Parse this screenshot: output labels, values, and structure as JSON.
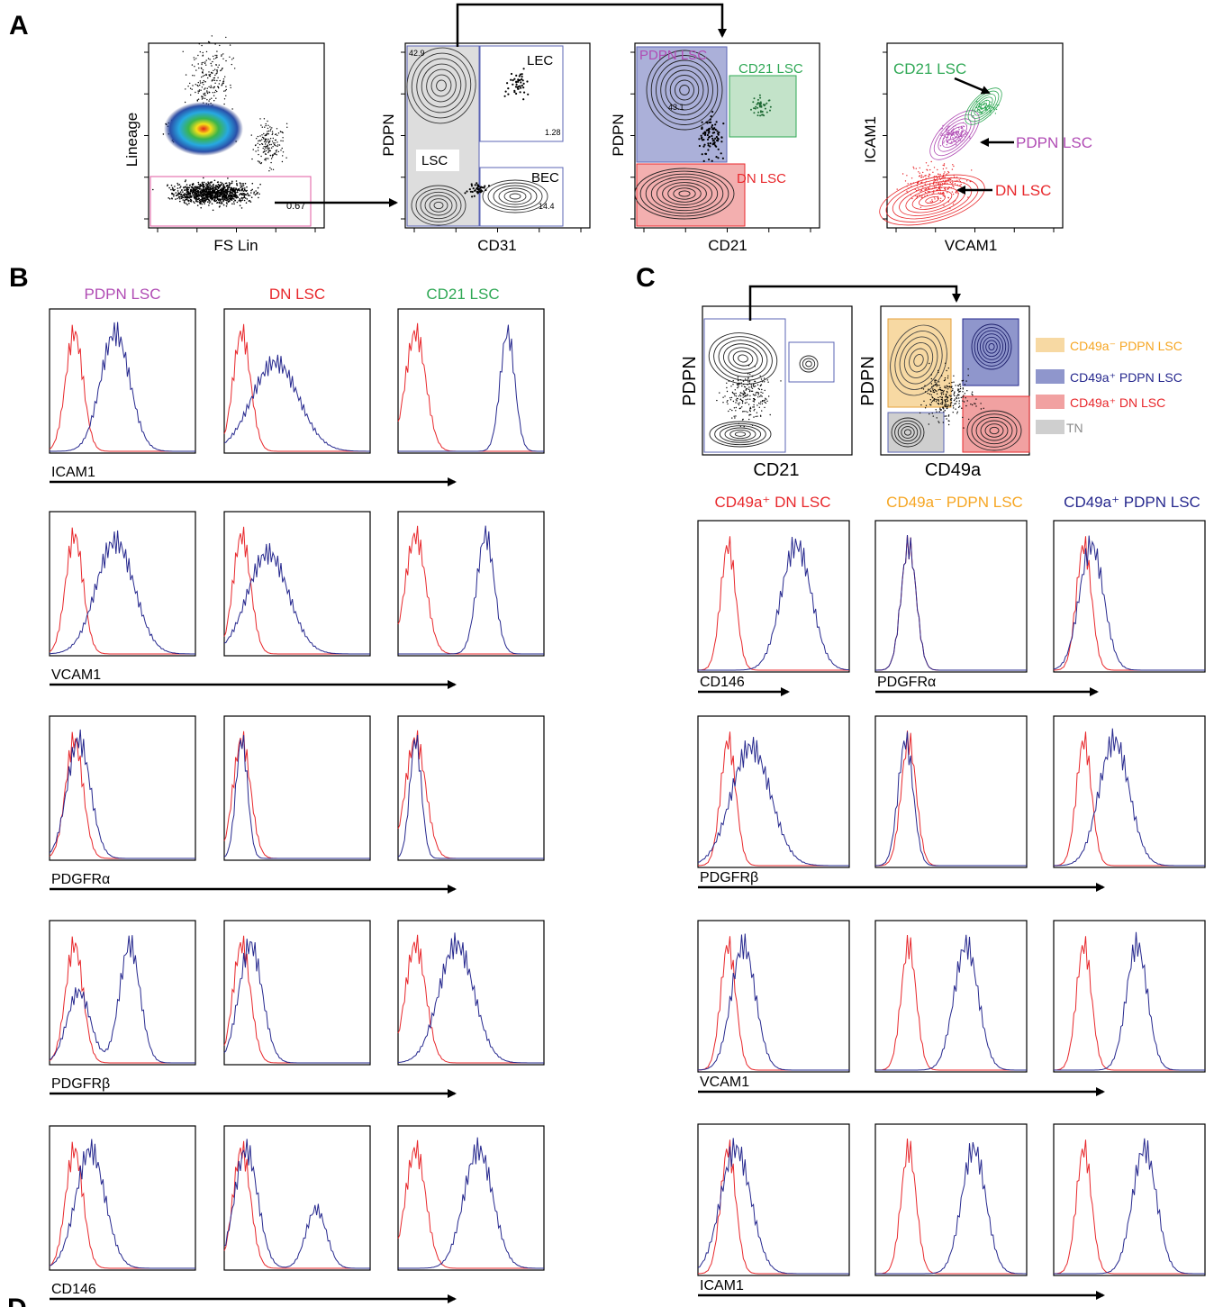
{
  "panel_letters": {
    "a": "A",
    "b": "B",
    "c": "C",
    "d_partial": "D"
  },
  "colors": {
    "red": "#e8282c",
    "blue": "#26288e",
    "green": "#2fa855",
    "purple": "#b04bb4",
    "orange": "#f6a623",
    "gray": "#8a8a8a",
    "gate_blue": "#8f96cc",
    "gate_red": "#f1a1a1",
    "gate_green": "#b4dcbc",
    "gate_orange": "#f7d9a3",
    "gate_gray": "#cfcfcf",
    "lin_gate": "#e05aa0"
  },
  "panel_a": {
    "plot1": {
      "ylabel": "Lineage",
      "xlabel": "FS Lin",
      "gate_pct": "0.67"
    },
    "plot2": {
      "ylabel": "PDPN",
      "xlabel": "CD31",
      "gates": [
        {
          "label": "LSC",
          "pct": "42.9"
        },
        {
          "label": "LEC",
          "pct": "1.28"
        },
        {
          "label": "BEC",
          "pct": "14.4"
        }
      ]
    },
    "plot3": {
      "ylabel": "PDPN",
      "xlabel": "CD21",
      "gates": [
        {
          "label": "PDPN LSC",
          "pct": "43.1"
        },
        {
          "label": "CD21 LSC"
        },
        {
          "label": "DN LSC"
        }
      ]
    },
    "plot4": {
      "ylabel": "ICAM1",
      "xlabel": "VCAM1",
      "arrows": [
        "CD21 LSC",
        "PDPN LSC",
        "DN LSC"
      ]
    }
  },
  "panel_b": {
    "columns": [
      "PDPN LSC",
      "DN LSC",
      "CD21 LSC"
    ],
    "rows": [
      "ICAM1",
      "VCAM1",
      "PDGFRα",
      "PDGFRβ",
      "CD146"
    ]
  },
  "panel_c": {
    "gate_plot1": {
      "ylabel": "PDPN",
      "xlabel": "CD21"
    },
    "gate_plot2": {
      "ylabel": "PDPN",
      "xlabel": "CD49a"
    },
    "legend": [
      {
        "label": "CD49a⁻ PDPN LSC",
        "color": "orange"
      },
      {
        "label": "CD49a⁺ PDPN LSC",
        "color": "blue"
      },
      {
        "label": "CD49a⁺ DN LSC",
        "color": "red"
      },
      {
        "label": "TN",
        "color": "gray"
      }
    ],
    "columns": [
      "CD49a⁺ DN LSC",
      "CD49a⁻ PDPN LSC",
      "CD49a⁺ PDPN LSC"
    ],
    "rows": [
      "CD146",
      "PDGFRβ",
      "VCAM1",
      "ICAM1"
    ],
    "row1_second_label": "PDGFRα"
  }
}
